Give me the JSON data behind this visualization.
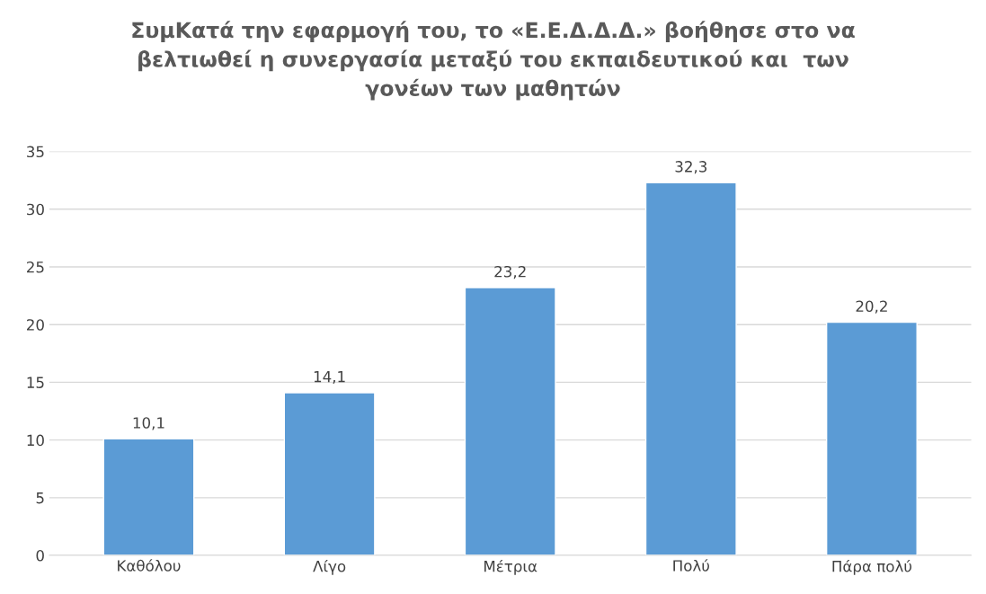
{
  "chart_data": {
    "type": "bar",
    "title": "ΣυμΚατά την εφαρμογή του, το «Ε.Ε.Δ.Δ.Δ.» βοήθησε στο να\nβελτιωθεί η συνεργασία μεταξύ του εκπαιδευτικού και  των\nγονέων των μαθητών",
    "categories": [
      "Καθόλου",
      "Λίγο",
      "Μέτρια",
      "Πολύ",
      "Πάρα πολύ"
    ],
    "values": [
      10.1,
      14.1,
      23.2,
      32.3,
      20.2
    ],
    "value_labels": [
      "10,1",
      "14,1",
      "23,2",
      "32,3",
      "20,2"
    ],
    "color": "#5b9bd5",
    "ylim": [
      0,
      35
    ],
    "yticks": [
      0,
      5,
      10,
      15,
      20,
      25,
      30,
      35
    ],
    "grid": "y"
  }
}
